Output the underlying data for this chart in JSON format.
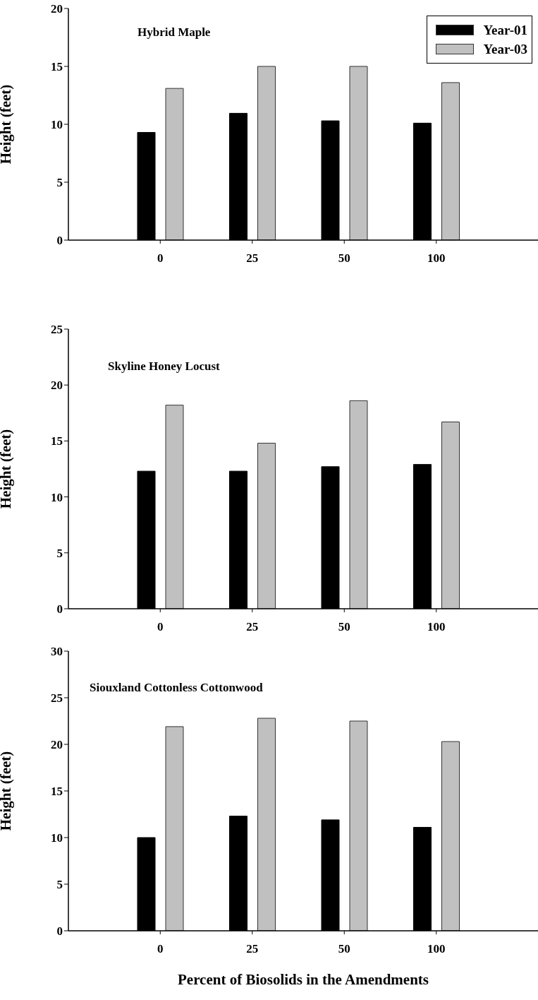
{
  "chart_data": [
    {
      "type": "bar",
      "title": "Hybrid Maple",
      "categories": [
        "0",
        "25",
        "50",
        "100"
      ],
      "ylabel": "Height (feet)",
      "ylim": [
        0,
        20
      ],
      "yticks": [
        0,
        5,
        10,
        15,
        20
      ],
      "legend": "top right",
      "series": [
        {
          "name": "Year-01",
          "color": "#000000",
          "values": [
            9.3,
            10.95,
            10.3,
            10.1
          ]
        },
        {
          "name": "Year-03",
          "color": "#c0c0c0",
          "values": [
            13.1,
            15.0,
            15.0,
            13.6
          ]
        }
      ]
    },
    {
      "type": "bar",
      "title": "Skyline Honey Locust",
      "categories": [
        "0",
        "25",
        "50",
        "100"
      ],
      "ylabel": "Height (feet)",
      "ylim": [
        0,
        25
      ],
      "yticks": [
        0,
        5,
        10,
        15,
        20,
        25
      ],
      "series": [
        {
          "color": "#000000",
          "values": [
            12.3,
            12.3,
            12.7,
            12.9
          ]
        },
        {
          "color": "#c0c0c0",
          "values": [
            18.2,
            14.8,
            18.6,
            16.7
          ]
        }
      ]
    },
    {
      "type": "bar",
      "title": "Siouxland Cottonless Cottonwood",
      "categories": [
        "0",
        "25",
        "50",
        "100"
      ],
      "ylabel": "Height (feet)",
      "xlabel": "Percent of Biosolids in the Amendments",
      "ylim": [
        0,
        30
      ],
      "yticks": [
        0,
        5,
        10,
        15,
        20,
        25,
        30
      ],
      "series": [
        {
          "color": "#000000",
          "values": [
            10.0,
            12.3,
            11.9,
            11.1
          ]
        },
        {
          "color": "#c0c0c0",
          "values": [
            21.9,
            22.8,
            22.5,
            20.3
          ]
        }
      ]
    }
  ]
}
